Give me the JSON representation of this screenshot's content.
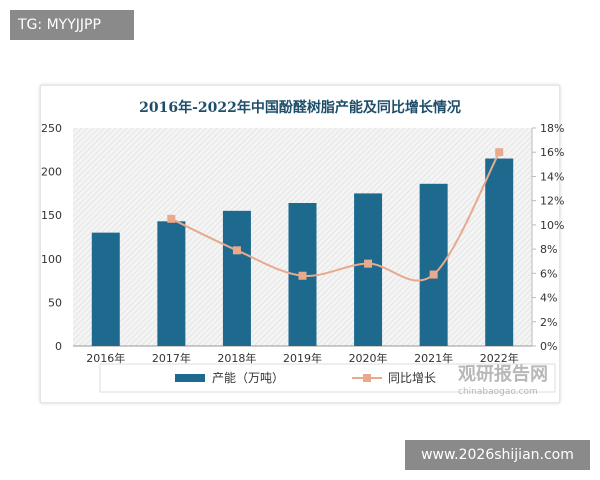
{
  "watermarks": {
    "top_left": "TG: MYYJJPP",
    "bottom_right": "www.2026shijian.com",
    "logo_text": "观研报告网",
    "logo_url_text": "chinabaogao.com"
  },
  "chart_data": {
    "type": "bar+line",
    "title": "2016年-2022年中国酚醛树脂产能及同比增长情况",
    "categories": [
      "2016年",
      "2017年",
      "2018年",
      "2019年",
      "2020年",
      "2021年",
      "2022年"
    ],
    "series": [
      {
        "name": "产能（万吨）",
        "type": "bar",
        "axis": "left",
        "color": "#1e6a8f",
        "values": [
          130,
          143,
          155,
          164,
          175,
          186,
          215
        ]
      },
      {
        "name": "同比增长",
        "type": "line",
        "axis": "right",
        "color": "#e8a98c",
        "values": [
          null,
          10.5,
          7.9,
          5.8,
          6.8,
          5.9,
          16.0
        ]
      }
    ],
    "left_axis": {
      "ylim": [
        0,
        250
      ],
      "ticks": [
        "0",
        "50",
        "100",
        "150",
        "200",
        "250"
      ]
    },
    "right_axis": {
      "ylim": [
        0,
        18
      ],
      "ticks": [
        "0%",
        "2%",
        "4%",
        "6%",
        "8%",
        "10%",
        "12%",
        "14%",
        "16%",
        "18%"
      ]
    },
    "legend_placement": "bottom",
    "grid": false
  }
}
